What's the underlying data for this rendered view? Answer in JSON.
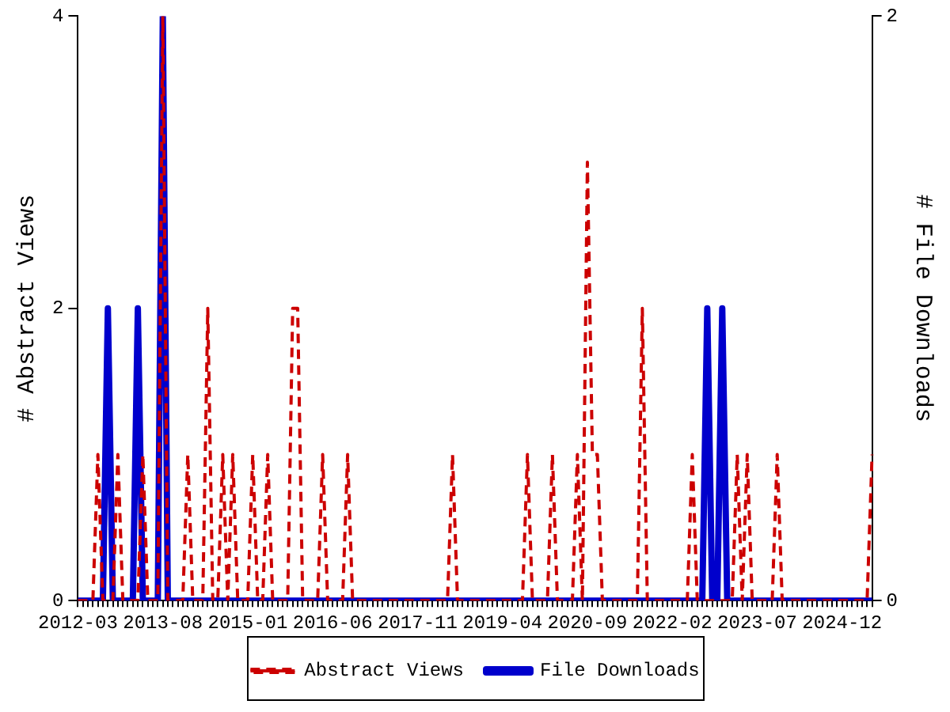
{
  "chart_data": {
    "type": "line",
    "ylabel": "# Abstract Views",
    "y2label": "# File Downloads",
    "categories": [
      "2012-03",
      null,
      null,
      null,
      null,
      null,
      null,
      null,
      null,
      null,
      null,
      null,
      null,
      null,
      null,
      null,
      null,
      "2013-08",
      null,
      null,
      null,
      null,
      null,
      null,
      null,
      null,
      null,
      null,
      null,
      null,
      null,
      null,
      null,
      null,
      "2015-01",
      null,
      null,
      null,
      null,
      null,
      null,
      null,
      null,
      null,
      null,
      null,
      null,
      null,
      null,
      null,
      null,
      "2016-06",
      null,
      null,
      null,
      null,
      null,
      null,
      null,
      null,
      null,
      null,
      null,
      null,
      null,
      null,
      null,
      null,
      "2017-11",
      null,
      null,
      null,
      null,
      null,
      null,
      null,
      null,
      null,
      null,
      null,
      null,
      null,
      null,
      null,
      null,
      "2019-04",
      null,
      null,
      null,
      null,
      null,
      null,
      null,
      null,
      null,
      null,
      null,
      null,
      null,
      null,
      null,
      null,
      "2020-09",
      null,
      null,
      null,
      null,
      null,
      null,
      null,
      null,
      null,
      null,
      null,
      null,
      null,
      null,
      null,
      null,
      "2022-02",
      null,
      null,
      null,
      null,
      null,
      null,
      null,
      null,
      null,
      null,
      null,
      null,
      null,
      null,
      null,
      null,
      "2023-07",
      null,
      null,
      null,
      null,
      null,
      null,
      null,
      null,
      null,
      null,
      null,
      null,
      null,
      null,
      null,
      null,
      "2024-12",
      null,
      null,
      null,
      null,
      null,
      null
    ],
    "series": [
      {
        "name": "Abstract Views",
        "color": "#cc0000",
        "line_style": "dashed",
        "values": [
          0,
          0,
          0,
          0,
          1,
          0,
          0,
          0,
          1,
          0,
          0,
          0,
          0,
          1,
          0,
          0,
          0,
          4,
          0,
          0,
          0,
          0,
          1,
          0,
          0,
          0,
          2,
          0,
          0,
          1,
          0,
          1,
          0,
          0,
          0,
          1,
          0,
          0,
          1,
          0,
          0,
          0,
          0,
          2,
          2,
          0,
          0,
          0,
          0,
          1,
          0,
          0,
          0,
          0,
          1,
          0,
          0,
          0,
          0,
          0,
          0,
          0,
          0,
          0,
          0,
          0,
          0,
          0,
          0,
          0,
          0,
          0,
          0,
          0,
          0,
          1,
          0,
          0,
          0,
          0,
          0,
          0,
          0,
          0,
          0,
          0,
          0,
          0,
          0,
          0,
          1,
          0,
          0,
          0,
          0,
          1,
          0,
          0,
          0,
          0,
          1,
          0,
          3,
          1,
          1,
          0,
          0,
          0,
          0,
          0,
          0,
          0,
          0,
          2,
          0,
          0,
          0,
          0,
          0,
          0,
          0,
          0,
          0,
          1,
          0,
          0,
          0,
          0,
          0,
          0,
          0,
          0,
          1,
          0,
          1,
          0,
          0,
          0,
          0,
          0,
          1,
          0,
          0,
          0,
          0,
          0,
          0,
          0,
          0,
          0,
          0,
          0,
          0,
          0,
          0,
          0,
          0,
          0,
          0,
          1
        ]
      },
      {
        "name": "File Downloads",
        "color": "#0000cc",
        "line_style": "solid",
        "axis": "y2",
        "values": [
          0,
          0,
          0,
          0,
          0,
          0,
          1,
          0,
          0,
          0,
          0,
          0,
          1,
          0,
          0,
          0,
          0,
          2,
          0,
          0,
          0,
          0,
          0,
          0,
          0,
          0,
          0,
          0,
          0,
          0,
          0,
          0,
          0,
          0,
          0,
          0,
          0,
          0,
          0,
          0,
          0,
          0,
          0,
          0,
          0,
          0,
          0,
          0,
          0,
          0,
          0,
          0,
          0,
          0,
          0,
          0,
          0,
          0,
          0,
          0,
          0,
          0,
          0,
          0,
          0,
          0,
          0,
          0,
          0,
          0,
          0,
          0,
          0,
          0,
          0,
          0,
          0,
          0,
          0,
          0,
          0,
          0,
          0,
          0,
          0,
          0,
          0,
          0,
          0,
          0,
          0,
          0,
          0,
          0,
          0,
          0,
          0,
          0,
          0,
          0,
          0,
          0,
          0,
          0,
          0,
          0,
          0,
          0,
          0,
          0,
          0,
          0,
          0,
          0,
          0,
          0,
          0,
          0,
          0,
          0,
          0,
          0,
          0,
          0,
          0,
          0,
          1,
          0,
          0,
          1,
          0,
          0,
          0,
          0,
          0,
          0,
          0,
          0,
          0,
          0,
          0,
          0,
          0,
          0,
          0,
          0,
          0,
          0,
          0,
          0,
          0,
          0,
          0,
          0,
          0,
          0,
          0,
          0,
          0,
          0
        ]
      }
    ],
    "ylim": [
      0,
      4
    ],
    "yticks": [
      0,
      2,
      4
    ],
    "y2lim": [
      0,
      2
    ],
    "y2ticks": [
      0,
      2
    ],
    "grid": false,
    "legend": "bottom"
  }
}
